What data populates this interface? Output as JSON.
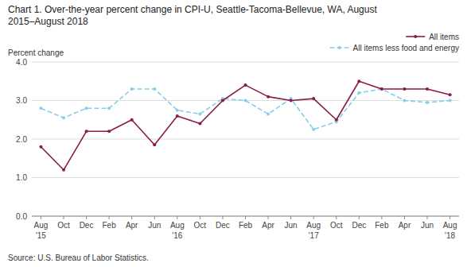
{
  "chart_data": {
    "type": "line",
    "title": "Chart 1. Over-the-year percent change in CPI-U, Seattle-Tacoma-Bellevue, WA, August",
    "subtitle": "2015–August  2018",
    "y_label": "Percent change",
    "source": "Source: U.S. Bureau of Labor Statistics.",
    "categories": [
      "Aug",
      "Oct",
      "Dec",
      "Feb",
      "Apr",
      "Jun",
      "Aug",
      "Oct",
      "Dec",
      "Feb",
      "Apr",
      "Jun",
      "Aug",
      "Oct",
      "Dec",
      "Feb",
      "Apr",
      "Jun",
      "Aug"
    ],
    "category_groups": [
      "'15",
      null,
      null,
      null,
      null,
      null,
      "'16",
      null,
      null,
      null,
      null,
      null,
      "'17",
      null,
      null,
      null,
      null,
      null,
      "'18"
    ],
    "series": [
      {
        "name": "All items less food and energy",
        "color": "#87CEEB",
        "line_style": "dashed",
        "marker": "circle",
        "values": [
          2.8,
          2.55,
          2.8,
          2.8,
          3.3,
          3.3,
          2.75,
          2.65,
          3.05,
          3.0,
          2.65,
          3.05,
          2.25,
          2.45,
          3.2,
          3.3,
          3.0,
          2.95,
          3.0
        ]
      },
      {
        "name": "All items",
        "color": "#8B1A4A",
        "line_style": "solid",
        "marker": "circle",
        "values": [
          1.8,
          1.2,
          2.2,
          2.2,
          2.5,
          1.85,
          2.6,
          2.4,
          3.0,
          3.4,
          3.1,
          3.0,
          3.05,
          2.5,
          3.5,
          3.3,
          3.3,
          3.3,
          3.15
        ]
      }
    ],
    "ylim": [
      0,
      4
    ],
    "yticks": [
      {
        "value": 0,
        "label": "0.0"
      },
      {
        "value": 1,
        "label": "1.0"
      },
      {
        "value": 2,
        "label": "2.0"
      },
      {
        "value": 3,
        "label": "3.0"
      },
      {
        "value": 4,
        "label": "4.0"
      }
    ],
    "grid": true,
    "legend": "upper right"
  }
}
